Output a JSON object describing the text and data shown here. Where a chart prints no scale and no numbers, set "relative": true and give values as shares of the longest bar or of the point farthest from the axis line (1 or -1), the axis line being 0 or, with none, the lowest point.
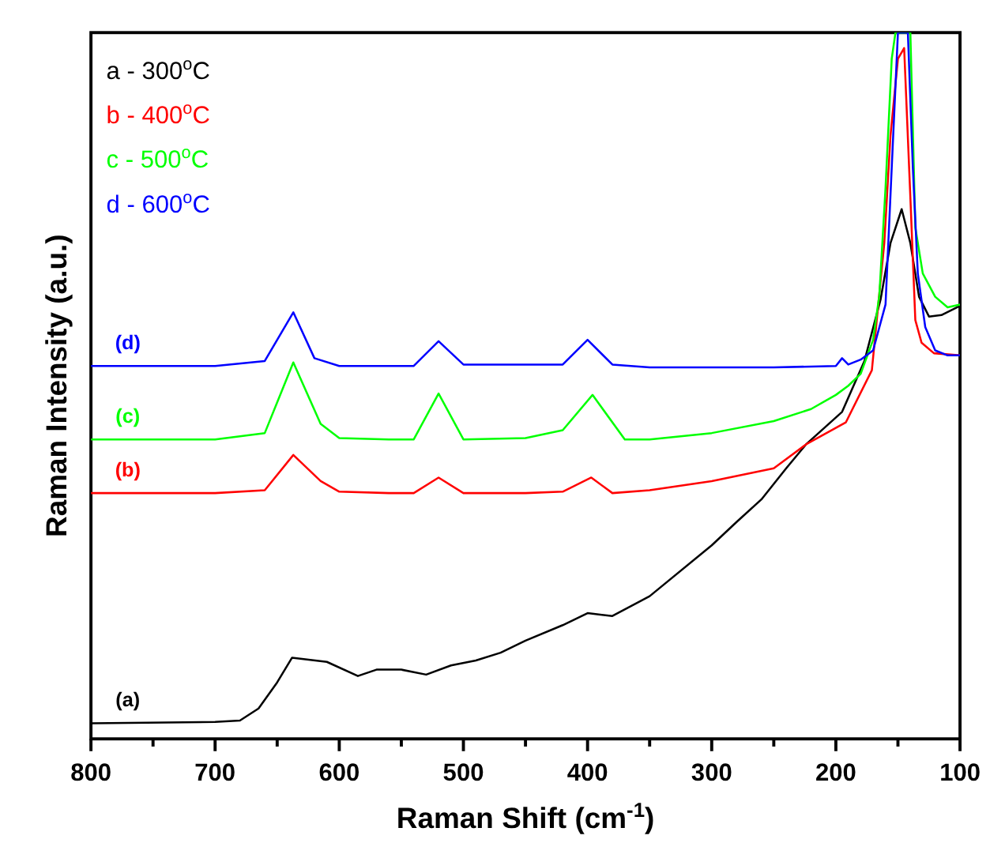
{
  "chart_data": {
    "type": "line",
    "relative": true,
    "xlabel": "Raman Shift (cm$^{-1}$)",
    "ylabel": "Raman Intensity (a.u.)",
    "xlim": [
      800,
      100
    ],
    "xticks": [
      800,
      {
        "value": 750,
        "label": null
      },
      700,
      {
        "value": 650,
        "label": null
      },
      600,
      {
        "value": 550,
        "label": null
      },
      500,
      {
        "value": 450,
        "label": null
      },
      400,
      {
        "value": 350,
        "label": null
      },
      300,
      {
        "value": 250,
        "label": null
      },
      200,
      {
        "value": 150,
        "label": null
      },
      100
    ],
    "legend": "top left",
    "marker": "none",
    "line_style": "solid",
    "grid": false,
    "annotations": [
      "(a)",
      "(b)",
      "(c)",
      "(d)"
    ],
    "series": [
      {
        "name": "a - 300$^{o}$C",
        "color": "#000000",
        "x": [
          800,
          700,
          680,
          665,
          650,
          638,
          610,
          585,
          570,
          550,
          530,
          510,
          490,
          470,
          450,
          420,
          400,
          380,
          350,
          300,
          280,
          260,
          240,
          224,
          195,
          177,
          164,
          156,
          147,
          140,
          133,
          125,
          115,
          100
        ],
        "values": [
          0.022,
          0.024,
          0.026,
          0.043,
          0.08,
          0.115,
          0.109,
          0.089,
          0.098,
          0.098,
          0.091,
          0.104,
          0.111,
          0.122,
          0.139,
          0.161,
          0.178,
          0.174,
          0.202,
          0.274,
          0.307,
          0.339,
          0.383,
          0.417,
          0.463,
          0.535,
          0.622,
          0.702,
          0.75,
          0.702,
          0.626,
          0.598,
          0.6,
          0.613
        ]
      },
      {
        "name": "b - 400$^{o}$C",
        "color": "#ff0000",
        "x": [
          800,
          700,
          660,
          637,
          615,
          600,
          560,
          540,
          520,
          500,
          450,
          420,
          397,
          380,
          350,
          300,
          250,
          224,
          192,
          171,
          161,
          156,
          150,
          145,
          140,
          136,
          131,
          121,
          100
        ],
        "values": [
          0.348,
          0.348,
          0.352,
          0.402,
          0.365,
          0.35,
          0.348,
          0.348,
          0.37,
          0.348,
          0.348,
          0.35,
          0.37,
          0.348,
          0.352,
          0.365,
          0.383,
          0.417,
          0.448,
          0.522,
          0.702,
          0.854,
          0.963,
          0.978,
          0.767,
          0.593,
          0.561,
          0.546,
          0.543
        ]
      },
      {
        "name": "c - 500$^{o}$C",
        "color": "#00ff00",
        "x": [
          800,
          700,
          660,
          637,
          615,
          600,
          560,
          540,
          520,
          500,
          450,
          420,
          396,
          370,
          350,
          300,
          250,
          220,
          200,
          190,
          180,
          170,
          165,
          160,
          155,
          152,
          140,
          136,
          130,
          120,
          110,
          100
        ],
        "values": [
          0.424,
          0.424,
          0.433,
          0.533,
          0.446,
          0.426,
          0.424,
          0.424,
          0.489,
          0.424,
          0.426,
          0.437,
          0.487,
          0.424,
          0.424,
          0.433,
          0.45,
          0.467,
          0.487,
          0.5,
          0.517,
          0.565,
          0.628,
          0.78,
          0.963,
          1,
          1,
          0.724,
          0.659,
          0.626,
          0.611,
          0.615
        ]
      },
      {
        "name": "d - 600$^{o}$C",
        "color": "#0000ff",
        "x": [
          800,
          700,
          660,
          637,
          620,
          600,
          540,
          520,
          500,
          420,
          400,
          380,
          350,
          250,
          200,
          195,
          190,
          180,
          170,
          160,
          155,
          150,
          142,
          138,
          134,
          128,
          120,
          110,
          100
        ],
        "values": [
          0.528,
          0.528,
          0.535,
          0.604,
          0.539,
          0.528,
          0.528,
          0.563,
          0.53,
          0.53,
          0.565,
          0.53,
          0.526,
          0.526,
          0.528,
          0.539,
          0.53,
          0.537,
          0.55,
          0.615,
          0.809,
          1,
          1,
          0.809,
          0.659,
          0.583,
          0.55,
          0.543,
          0.543
        ]
      }
    ]
  }
}
